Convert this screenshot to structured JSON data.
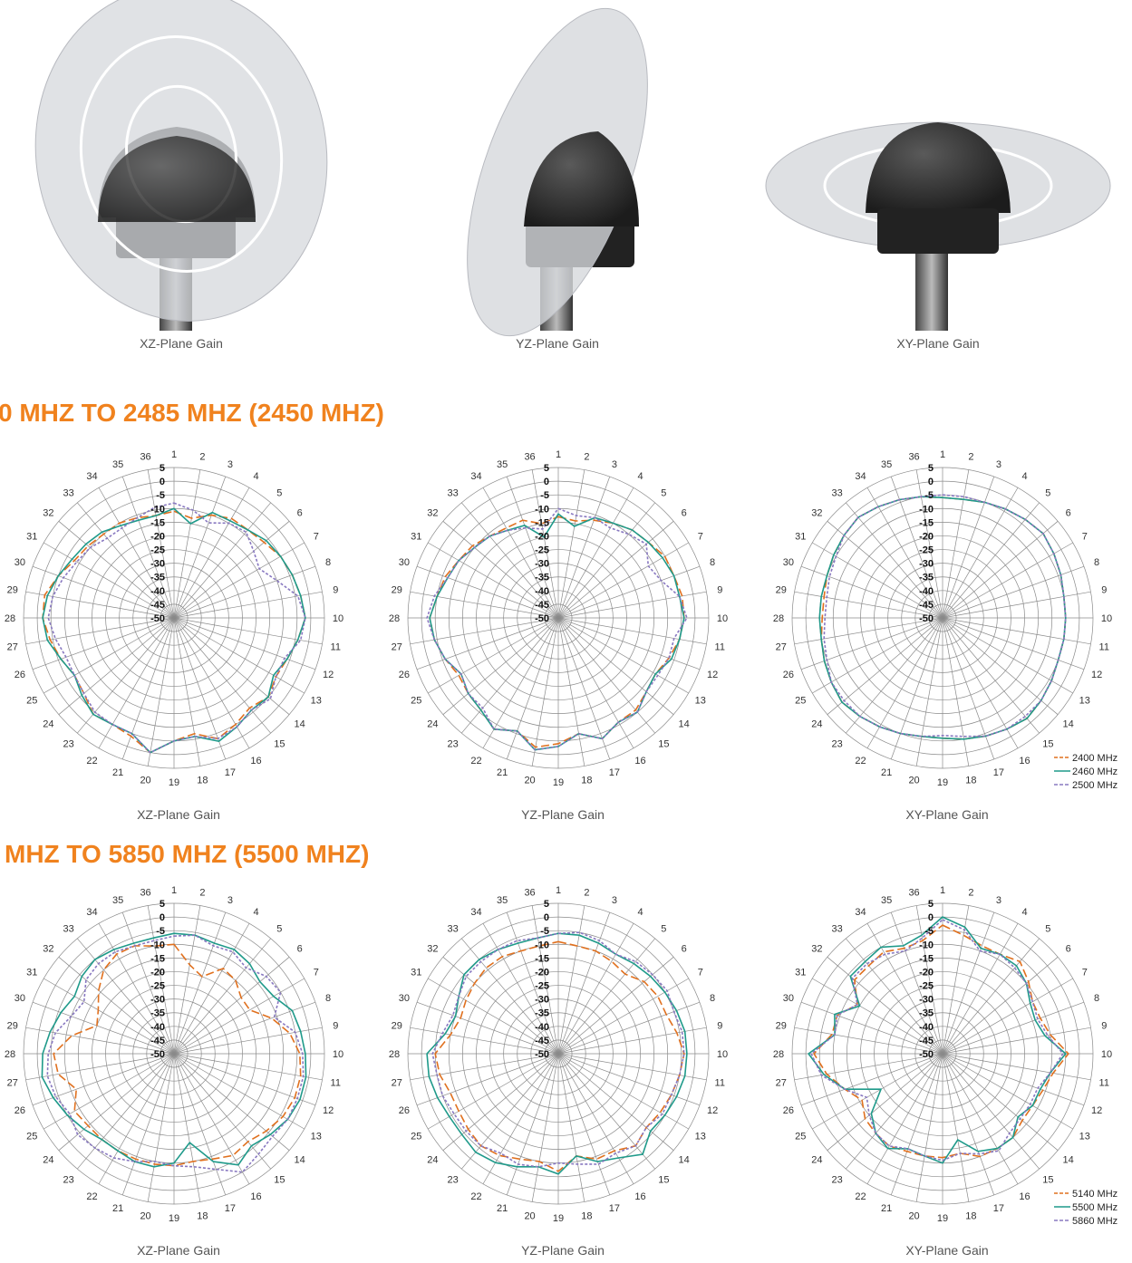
{
  "figures": [
    {
      "caption": "XZ-Plane Gain"
    },
    {
      "caption": "YZ-Plane Gain"
    },
    {
      "caption": "XY-Plane Gain"
    }
  ],
  "headings": [
    "0 MHZ TO 2485 MHZ (2450 MHZ)",
    "MHZ TO 5850 MHZ (5500 MHZ)"
  ],
  "chart_data": [
    {
      "type": "polar",
      "title": "XZ-Plane Gain",
      "categories": [
        "1",
        "2",
        "3",
        "4",
        "5",
        "6",
        "7",
        "8",
        "9",
        "10",
        "11",
        "12",
        "13",
        "14",
        "15",
        "16",
        "17",
        "18",
        "19",
        "20",
        "21",
        "22",
        "23",
        "24",
        "25",
        "26",
        "27",
        "28",
        "29",
        "30",
        "31",
        "32",
        "33",
        "34",
        "35",
        "36"
      ],
      "rlim": [
        -50,
        5
      ],
      "rticks": [
        5,
        0,
        -5,
        -10,
        -15,
        -20,
        -25,
        -30,
        -35,
        -40,
        -45,
        -50
      ],
      "series": [
        {
          "color": "#e0701e",
          "dash": "9,4",
          "values": [
            -11,
            -13,
            -10,
            -8,
            -8,
            -7,
            -5,
            -4,
            -3,
            -2,
            -4,
            -6,
            -7,
            -5,
            -7,
            -5,
            -3,
            -7,
            -5,
            0,
            -4,
            -5,
            -4,
            -7,
            -8,
            -6,
            -4,
            -2,
            -2,
            -5,
            -8,
            -9,
            -10,
            -10,
            -11,
            -12
          ]
        },
        {
          "color": "#1f9a8a",
          "dash": "none",
          "values": [
            -10,
            -15,
            -9,
            -9,
            -8,
            -6,
            -5,
            -4,
            -3,
            -2,
            -4,
            -6,
            -8,
            -5,
            -6,
            -4,
            -2,
            -6,
            -5,
            0,
            -5,
            -5,
            -4,
            -6,
            -8,
            -6,
            -3,
            -2,
            -3,
            -5,
            -7,
            -8,
            -9,
            -11,
            -12,
            -12
          ]
        },
        {
          "color": "#8878c0",
          "dash": "3,2",
          "values": [
            -8,
            -10,
            -13,
            -10,
            -9,
            -12,
            -14,
            -10,
            -4,
            -2,
            -3,
            -7,
            -7,
            -4,
            -6,
            -4,
            -3,
            -6,
            -5,
            0,
            -5,
            -5,
            -5,
            -7,
            -8,
            -8,
            -6,
            -4,
            -5,
            -7,
            -9,
            -10,
            -12,
            -12,
            -11,
            -9
          ]
        }
      ]
    },
    {
      "type": "polar",
      "title": "YZ-Plane Gain",
      "categories": [
        "1",
        "2",
        "3",
        "4",
        "5",
        "6",
        "7",
        "8",
        "9",
        "10",
        "11",
        "12",
        "13",
        "14",
        "15",
        "16",
        "17",
        "18",
        "19",
        "20",
        "21",
        "22",
        "23",
        "24",
        "25",
        "26",
        "27",
        "28",
        "29",
        "30",
        "31",
        "32",
        "33",
        "34",
        "35",
        "36"
      ],
      "rlim": [
        -50,
        5
      ],
      "rticks": [
        5,
        0,
        -5,
        -10,
        -15,
        -20,
        -25,
        -30,
        -35,
        -40,
        -45,
        -50
      ],
      "series": [
        {
          "color": "#e0701e",
          "dash": "9,4",
          "values": [
            -13,
            -14,
            -12,
            -10,
            -8,
            -7,
            -5,
            -5,
            -4,
            -4,
            -5,
            -7,
            -9,
            -8,
            -6,
            -6,
            -3,
            -7,
            -4,
            -2,
            -6,
            -3,
            -6,
            -7,
            -8,
            -6,
            -4,
            -3,
            -5,
            -6,
            -8,
            -9,
            -11,
            -12,
            -12,
            -15
          ]
        },
        {
          "color": "#1f9a8a",
          "dash": "none",
          "values": [
            -12,
            -16,
            -11,
            -10,
            -8,
            -7,
            -6,
            -5,
            -5,
            -4,
            -5,
            -6,
            -9,
            -8,
            -5,
            -6,
            -3,
            -7,
            -3,
            -1,
            -6,
            -3,
            -6,
            -7,
            -9,
            -6,
            -4,
            -3,
            -5,
            -7,
            -8,
            -10,
            -11,
            -13,
            -14,
            -20
          ]
        },
        {
          "color": "#8878c0",
          "dash": "3,2",
          "values": [
            -10,
            -12,
            -11,
            -12,
            -10,
            -8,
            -12,
            -10,
            -5,
            -3,
            -7,
            -7,
            -8,
            -8,
            -5,
            -6,
            -3,
            -7,
            -3,
            -1,
            -6,
            -3,
            -7,
            -7,
            -9,
            -6,
            -4,
            -2,
            -4,
            -7,
            -8,
            -10,
            -11,
            -13,
            -15,
            -17
          ]
        }
      ]
    },
    {
      "type": "polar",
      "title": "XY-Plane Gain",
      "categories": [
        "1",
        "2",
        "3",
        "4",
        "5",
        "6",
        "7",
        "8",
        "9",
        "10",
        "11",
        "12",
        "13",
        "14",
        "15",
        "16",
        "17",
        "18",
        "19",
        "20",
        "21",
        "22",
        "23",
        "24",
        "25",
        "26",
        "27",
        "28",
        "29",
        "30",
        "31",
        "32",
        "33",
        "34",
        "35",
        "36"
      ],
      "rlim": [
        -50,
        5
      ],
      "rticks": [
        5,
        0,
        -5,
        -10,
        -15,
        -20,
        -25,
        -30,
        -35,
        -40,
        -45,
        -50
      ],
      "legend": "bottom-right",
      "series": [
        {
          "name": "2400 MHz",
          "color": "#e0701e",
          "dash": "9,4",
          "values": [
            -6,
            -6,
            -5,
            -4,
            -3,
            -2,
            -3,
            -4,
            -5,
            -5,
            -5,
            -5,
            -4,
            -3,
            -2,
            -3,
            -4,
            -5,
            -6,
            -6,
            -5,
            -4,
            -3,
            -2,
            -3,
            -4,
            -5,
            -6,
            -6,
            -5,
            -4,
            -3,
            -2,
            -3,
            -4,
            -5
          ]
        },
        {
          "name": "2460 MHz",
          "color": "#1f9a8a",
          "dash": "none",
          "values": [
            -6,
            -6,
            -5,
            -4,
            -3,
            -2,
            -3,
            -4,
            -5,
            -5,
            -5,
            -5,
            -4,
            -3,
            -2,
            -3,
            -4,
            -5,
            -6,
            -6,
            -5,
            -4,
            -3,
            -2,
            -3,
            -4,
            -5,
            -5,
            -5,
            -5,
            -4,
            -3,
            -2,
            -3,
            -4,
            -5
          ]
        },
        {
          "name": "2500 MHz",
          "color": "#8878c0",
          "dash": "3,2",
          "values": [
            -5,
            -5,
            -5,
            -4,
            -3,
            -2,
            -3,
            -4,
            -5,
            -5,
            -5,
            -5,
            -4,
            -3,
            -3,
            -3,
            -4,
            -6,
            -7,
            -6,
            -5,
            -4,
            -3,
            -3,
            -3,
            -5,
            -6,
            -7,
            -7,
            -6,
            -5,
            -3,
            -2,
            -3,
            -4,
            -5
          ]
        }
      ]
    },
    {
      "type": "polar",
      "title": "XZ-Plane Gain",
      "categories": [
        "1",
        "2",
        "3",
        "4",
        "5",
        "6",
        "7",
        "8",
        "9",
        "10",
        "11",
        "12",
        "13",
        "14",
        "15",
        "16",
        "17",
        "18",
        "19",
        "20",
        "21",
        "22",
        "23",
        "24",
        "25",
        "26",
        "27",
        "28",
        "29",
        "30",
        "31",
        "32",
        "33",
        "34",
        "35",
        "36"
      ],
      "rlim": [
        -50,
        5
      ],
      "rticks": [
        5,
        0,
        -5,
        -10,
        -15,
        -20,
        -25,
        -30,
        -35,
        -40,
        -45,
        -50
      ],
      "series": [
        {
          "color": "#e0701e",
          "dash": "9,4",
          "values": [
            -10,
            -17,
            -20,
            -14,
            -15,
            -18,
            -18,
            -12,
            -7,
            -4,
            -3,
            -3,
            -4,
            -6,
            -8,
            -7,
            -9,
            -10,
            -9,
            -9,
            -9,
            -9,
            -9,
            -9,
            -8,
            -12,
            -7,
            -6,
            -12,
            -20,
            -18,
            -14,
            -10,
            -8,
            -8,
            -10
          ]
        },
        {
          "color": "#1f9a8a",
          "dash": "none",
          "values": [
            -6,
            -6,
            -7,
            -6,
            -7,
            -9,
            -8,
            -4,
            -3,
            -2,
            -1,
            -1,
            -2,
            -4,
            -6,
            -3,
            -8,
            -17,
            -10,
            -8,
            -8,
            -9,
            -9,
            -7,
            -5,
            -3,
            -1,
            -2,
            -4,
            -6,
            -8,
            -6,
            -5,
            -6,
            -7,
            -7
          ]
        },
        {
          "color": "#8878c0",
          "dash": "3,2",
          "values": [
            -7,
            -6,
            -8,
            -7,
            -9,
            -6,
            -5,
            -11,
            -5,
            -3,
            -2,
            -2,
            -2,
            -3,
            -2,
            0,
            -5,
            -8,
            -9,
            -10,
            -8,
            -6,
            -5,
            -4,
            -6,
            -4,
            -3,
            -4,
            -6,
            -10,
            -12,
            -8,
            -7,
            -7,
            -8,
            -8
          ]
        }
      ]
    },
    {
      "type": "polar",
      "title": "YZ-Plane Gain",
      "categories": [
        "1",
        "2",
        "3",
        "4",
        "5",
        "6",
        "7",
        "8",
        "9",
        "10",
        "11",
        "12",
        "13",
        "14",
        "15",
        "16",
        "17",
        "18",
        "19",
        "20",
        "21",
        "22",
        "23",
        "24",
        "25",
        "26",
        "27",
        "28",
        "29",
        "30",
        "31",
        "32",
        "33",
        "34",
        "35",
        "36"
      ],
      "rlim": [
        -50,
        5
      ],
      "rticks": [
        5,
        0,
        -5,
        -10,
        -15,
        -20,
        -25,
        -30,
        -35,
        -40,
        -45,
        -50
      ],
      "series": [
        {
          "color": "#e0701e",
          "dash": "9,4",
          "values": [
            -9,
            -10,
            -10,
            -11,
            -12,
            -9,
            -8,
            -8,
            -6,
            -4,
            -5,
            -6,
            -7,
            -8,
            -6,
            -9,
            -9,
            -12,
            -7,
            -10,
            -9,
            -7,
            -6,
            -7,
            -8,
            -8,
            -6,
            -5,
            -10,
            -12,
            -11,
            -10,
            -9,
            -9,
            -10,
            -10
          ]
        },
        {
          "color": "#1f9a8a",
          "dash": "none",
          "values": [
            -6,
            -6,
            -7,
            -8,
            -7,
            -6,
            -5,
            -4,
            -3,
            -3,
            -3,
            -4,
            -5,
            -6,
            -2,
            -6,
            -8,
            -12,
            -6,
            -8,
            -6,
            -4,
            -3,
            -4,
            -4,
            -3,
            -2,
            -2,
            -8,
            -10,
            -8,
            -5,
            -5,
            -6,
            -7,
            -7
          ]
        },
        {
          "color": "#8878c0",
          "dash": "3,2",
          "values": [
            -6,
            -5,
            -6,
            -8,
            -6,
            -5,
            -4,
            -5,
            -4,
            -4,
            -5,
            -6,
            -6,
            -8,
            -6,
            -8,
            -7,
            -9,
            -10,
            -8,
            -7,
            -8,
            -6,
            -6,
            -6,
            -5,
            -5,
            -4,
            -7,
            -9,
            -8,
            -6,
            -6,
            -6,
            -6,
            -7
          ]
        }
      ]
    },
    {
      "type": "polar",
      "title": "XY-Plane Gain",
      "categories": [
        "1",
        "2",
        "3",
        "4",
        "5",
        "6",
        "7",
        "8",
        "9",
        "10",
        "11",
        "12",
        "13",
        "14",
        "15",
        "16",
        "17",
        "18",
        "19",
        "20",
        "21",
        "22",
        "23",
        "24",
        "25",
        "26",
        "27",
        "28",
        "29",
        "30",
        "31",
        "32",
        "33",
        "34",
        "35",
        "36"
      ],
      "rlim": [
        -50,
        5
      ],
      "rticks": [
        5,
        0,
        -5,
        -10,
        -15,
        -20,
        -25,
        -30,
        -35,
        -40,
        -45,
        -50
      ],
      "legend": "bottom-right",
      "series": [
        {
          "name": "5140 MHz",
          "color": "#e0701e",
          "dash": "9,4",
          "values": [
            -3,
            -6,
            -8,
            -8,
            -6,
            -9,
            -12,
            -12,
            -10,
            -4,
            -9,
            -11,
            -12,
            -12,
            -10,
            -10,
            -10,
            -13,
            -12,
            -12,
            -12,
            -11,
            -12,
            -13,
            -16,
            -12,
            -7,
            -3,
            -9,
            -9,
            -14,
            -8,
            -8,
            -7,
            -9,
            -8
          ]
        },
        {
          "name": "5500 MHz",
          "color": "#1f9a8a",
          "dash": "none",
          "values": [
            0,
            -3,
            -9,
            -8,
            -8,
            -10,
            -13,
            -14,
            -12,
            -5,
            -10,
            -12,
            -12,
            -14,
            -10,
            -10,
            -12,
            -18,
            -10,
            -12,
            -13,
            -10,
            -12,
            -16,
            -24,
            -12,
            -6,
            -1,
            -10,
            -8,
            -15,
            -6,
            -6,
            -5,
            -8,
            -6
          ]
        },
        {
          "name": "5860 MHz",
          "color": "#8878c0",
          "dash": "3,2",
          "values": [
            -1,
            -4,
            -10,
            -8,
            -9,
            -10,
            -12,
            -13,
            -11,
            -6,
            -10,
            -13,
            -13,
            -13,
            -12,
            -9,
            -11,
            -13,
            -11,
            -12,
            -13,
            -11,
            -12,
            -15,
            -18,
            -12,
            -5,
            -2,
            -10,
            -9,
            -14,
            -7,
            -7,
            -8,
            -10,
            -7
          ]
        }
      ]
    }
  ]
}
